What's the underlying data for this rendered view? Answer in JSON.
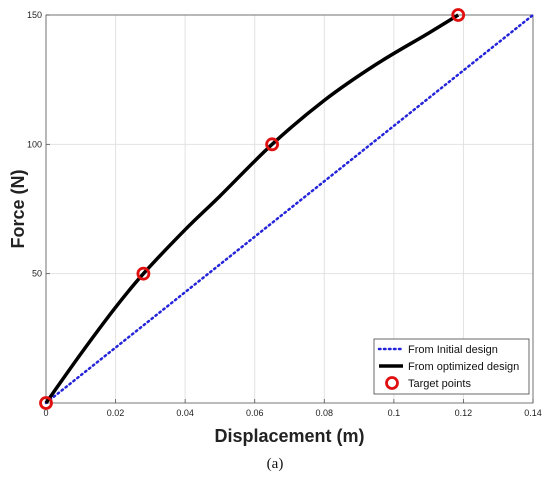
{
  "caption": "(a)",
  "chart_data": {
    "type": "line",
    "xlabel": "Displacement (m)",
    "ylabel": "Force (N)",
    "xlim": [
      0,
      0.14
    ],
    "ylim": [
      0,
      150
    ],
    "x_ticks": [
      0,
      0.02,
      0.04,
      0.06,
      0.08,
      0.1,
      0.12,
      0.14
    ],
    "x_tick_labels": [
      "0",
      "0.02",
      "0.04",
      "0.06",
      "0.08",
      "0.1",
      "0.12",
      "0.14"
    ],
    "y_ticks": [
      50,
      100,
      150
    ],
    "y_tick_labels": [
      "50",
      "100",
      "150"
    ],
    "grid": true,
    "legend_position": "bottom-right",
    "series": [
      {
        "name": "From Initial design",
        "style": "dotted",
        "color": "#2424d8",
        "x": [
          0,
          0.14
        ],
        "y": [
          0,
          150
        ]
      },
      {
        "name": "From optimized design",
        "style": "solid",
        "color": "#000000",
        "x": [
          0,
          0.01,
          0.02,
          0.028,
          0.04,
          0.05,
          0.065,
          0.08,
          0.095,
          0.11,
          0.1185
        ],
        "y": [
          0,
          19,
          37,
          50,
          67,
          80,
          100,
          117,
          131,
          143,
          150
        ]
      },
      {
        "name": "Target points",
        "style": "marker",
        "color": "#e01010",
        "x": [
          0,
          0.028,
          0.065,
          0.1185
        ],
        "y": [
          0,
          50,
          100,
          150
        ]
      }
    ]
  }
}
